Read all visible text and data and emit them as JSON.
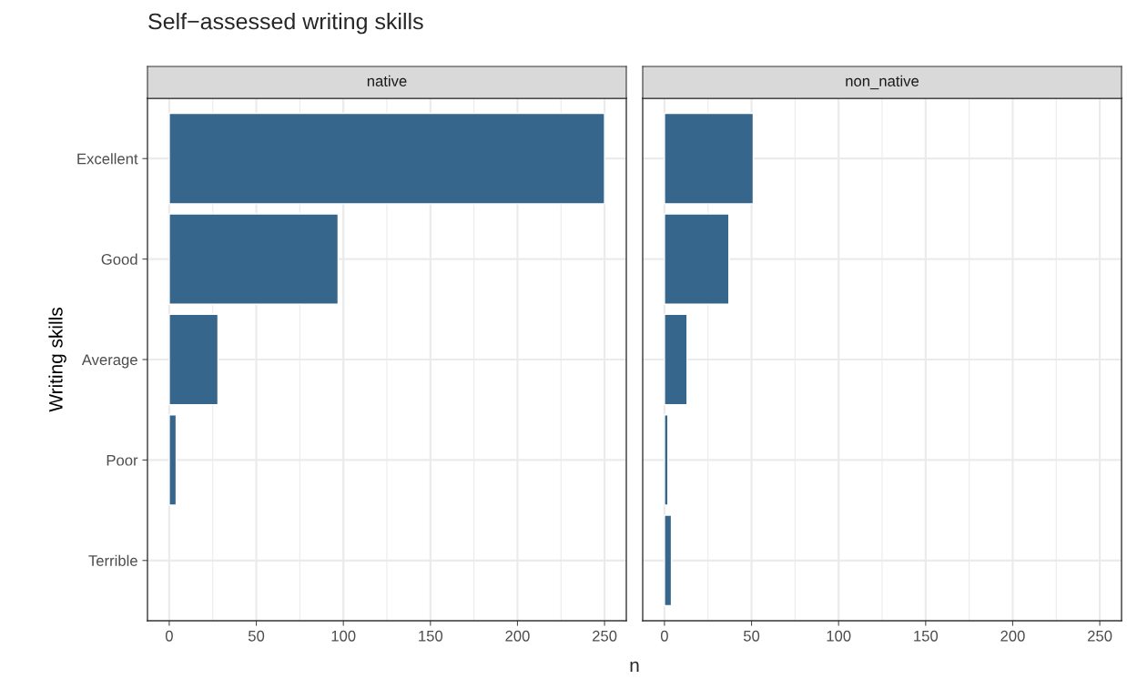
{
  "chart_data": [
    {
      "type": "bar",
      "orientation": "horizontal",
      "title": "Self−assessed writing skills",
      "subtitle": "native",
      "xlabel": "n",
      "ylabel": "Writing skills",
      "categories": [
        "Excellent",
        "Good",
        "Average",
        "Poor",
        "Terrible"
      ],
      "values": [
        250,
        97,
        28,
        4,
        null
      ],
      "color": "#37668c",
      "xlim": [
        -12.5,
        262.5
      ],
      "xticks": [
        0,
        50,
        100,
        150,
        200,
        250
      ],
      "grid": true
    },
    {
      "type": "bar",
      "orientation": "horizontal",
      "subtitle": "non_native",
      "categories": [
        null,
        null,
        null,
        null,
        null
      ],
      "values": [
        51,
        37,
        13,
        2,
        4
      ],
      "color": "#37668c",
      "xlim": [
        -12.5,
        262.5
      ],
      "xticks": [
        0,
        50,
        100,
        150,
        200,
        250
      ],
      "grid": true,
      "tick_labels": "x"
    }
  ]
}
